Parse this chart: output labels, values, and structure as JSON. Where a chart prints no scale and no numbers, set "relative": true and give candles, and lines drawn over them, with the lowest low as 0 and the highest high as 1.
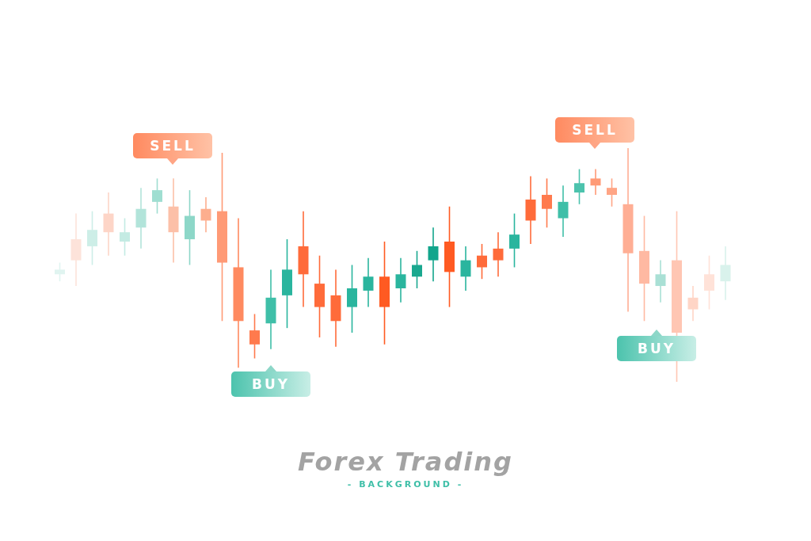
{
  "chart_data": {
    "type": "candlestick",
    "title": "Forex Trading",
    "subtitle": "- BACKGROUND -",
    "relative": true,
    "categories": [
      null,
      null,
      null,
      null,
      null,
      null,
      null,
      null,
      null,
      null,
      null,
      null,
      null,
      null,
      null,
      null,
      null,
      null,
      null,
      null,
      null,
      null,
      null,
      null,
      null,
      null,
      null,
      null,
      null,
      null,
      null,
      null,
      null,
      null,
      null,
      null,
      null,
      null,
      null,
      null,
      null,
      null
    ],
    "ohlc": [
      [
        0.46,
        0.51,
        0.43,
        0.48
      ],
      [
        0.61,
        0.72,
        0.41,
        0.52
      ],
      [
        0.58,
        0.73,
        0.5,
        0.65
      ],
      [
        0.72,
        0.81,
        0.54,
        0.64
      ],
      [
        0.6,
        0.7,
        0.54,
        0.64
      ],
      [
        0.66,
        0.83,
        0.57,
        0.74
      ],
      [
        0.77,
        0.87,
        0.72,
        0.82
      ],
      [
        0.75,
        0.87,
        0.51,
        0.64
      ],
      [
        0.61,
        0.82,
        0.5,
        0.71
      ],
      [
        0.74,
        0.79,
        0.64,
        0.69
      ],
      [
        0.73,
        0.98,
        0.26,
        0.51
      ],
      [
        0.49,
        0.7,
        0.06,
        0.26
      ],
      [
        0.22,
        0.29,
        0.1,
        0.16
      ],
      [
        0.25,
        0.48,
        0.14,
        0.36
      ],
      [
        0.37,
        0.61,
        0.23,
        0.48
      ],
      [
        0.58,
        0.73,
        0.32,
        0.46
      ],
      [
        0.42,
        0.54,
        0.19,
        0.32
      ],
      [
        0.37,
        0.48,
        0.15,
        0.26
      ],
      [
        0.32,
        0.5,
        0.21,
        0.4
      ],
      [
        0.39,
        0.53,
        0.32,
        0.45
      ],
      [
        0.45,
        0.6,
        0.16,
        0.32
      ],
      [
        0.4,
        0.53,
        0.34,
        0.46
      ],
      [
        0.45,
        0.56,
        0.4,
        0.5
      ],
      [
        0.52,
        0.66,
        0.43,
        0.58
      ],
      [
        0.6,
        0.75,
        0.32,
        0.47
      ],
      [
        0.45,
        0.58,
        0.39,
        0.52
      ],
      [
        0.54,
        0.59,
        0.44,
        0.49
      ],
      [
        0.57,
        0.64,
        0.45,
        0.52
      ],
      [
        0.57,
        0.72,
        0.49,
        0.63
      ],
      [
        0.78,
        0.88,
        0.59,
        0.69
      ],
      [
        0.8,
        0.87,
        0.66,
        0.74
      ],
      [
        0.7,
        0.84,
        0.62,
        0.77
      ],
      [
        0.81,
        0.91,
        0.76,
        0.85
      ],
      [
        0.87,
        0.91,
        0.8,
        0.84
      ],
      [
        0.83,
        0.87,
        0.75,
        0.8
      ],
      [
        0.76,
        1,
        0.3,
        0.55
      ],
      [
        0.56,
        0.71,
        0.26,
        0.42
      ],
      [
        0.41,
        0.52,
        0.34,
        0.46
      ],
      [
        0.52,
        0.73,
        0,
        0.21
      ],
      [
        0.36,
        0.41,
        0.26,
        0.31
      ],
      [
        0.46,
        0.54,
        0.31,
        0.39
      ],
      [
        0.43,
        0.58,
        0.35,
        0.5
      ]
    ],
    "colors": [
      "#e0f4f0",
      "#fde3da",
      "#cdeee7",
      "#fdd5c7",
      "#c4ebe3",
      "#b2e4da",
      "#9fded1",
      "#fcc0a8",
      "#8dd7c8",
      "#fdae8e",
      "#ff9a76",
      "#ff8a60",
      "#ff7a4d",
      "#3fbfa8",
      "#2ab59e",
      "#ff6b3a",
      "#ff6b3a",
      "#ff6b3a",
      "#2ab59e",
      "#2ab59e",
      "#ff5a22",
      "#2ab59e",
      "#1aa88f",
      "#12a58c",
      "#ff5a22",
      "#2ab59e",
      "#ff6b3a",
      "#ff6b3a",
      "#2ab59e",
      "#ff6b3a",
      "#ff7a4d",
      "#3fbfa8",
      "#4cc3ad",
      "#ff9a76",
      "#ffa585",
      "#ffae94",
      "#ffb9a2",
      "#a9e0d5",
      "#ffc6b3",
      "#ffd5c6",
      "#ffe2d8",
      "#d9f2ec"
    ],
    "annotations": [
      "SELL",
      "BUY",
      "SELL",
      "BUY"
    ]
  }
}
